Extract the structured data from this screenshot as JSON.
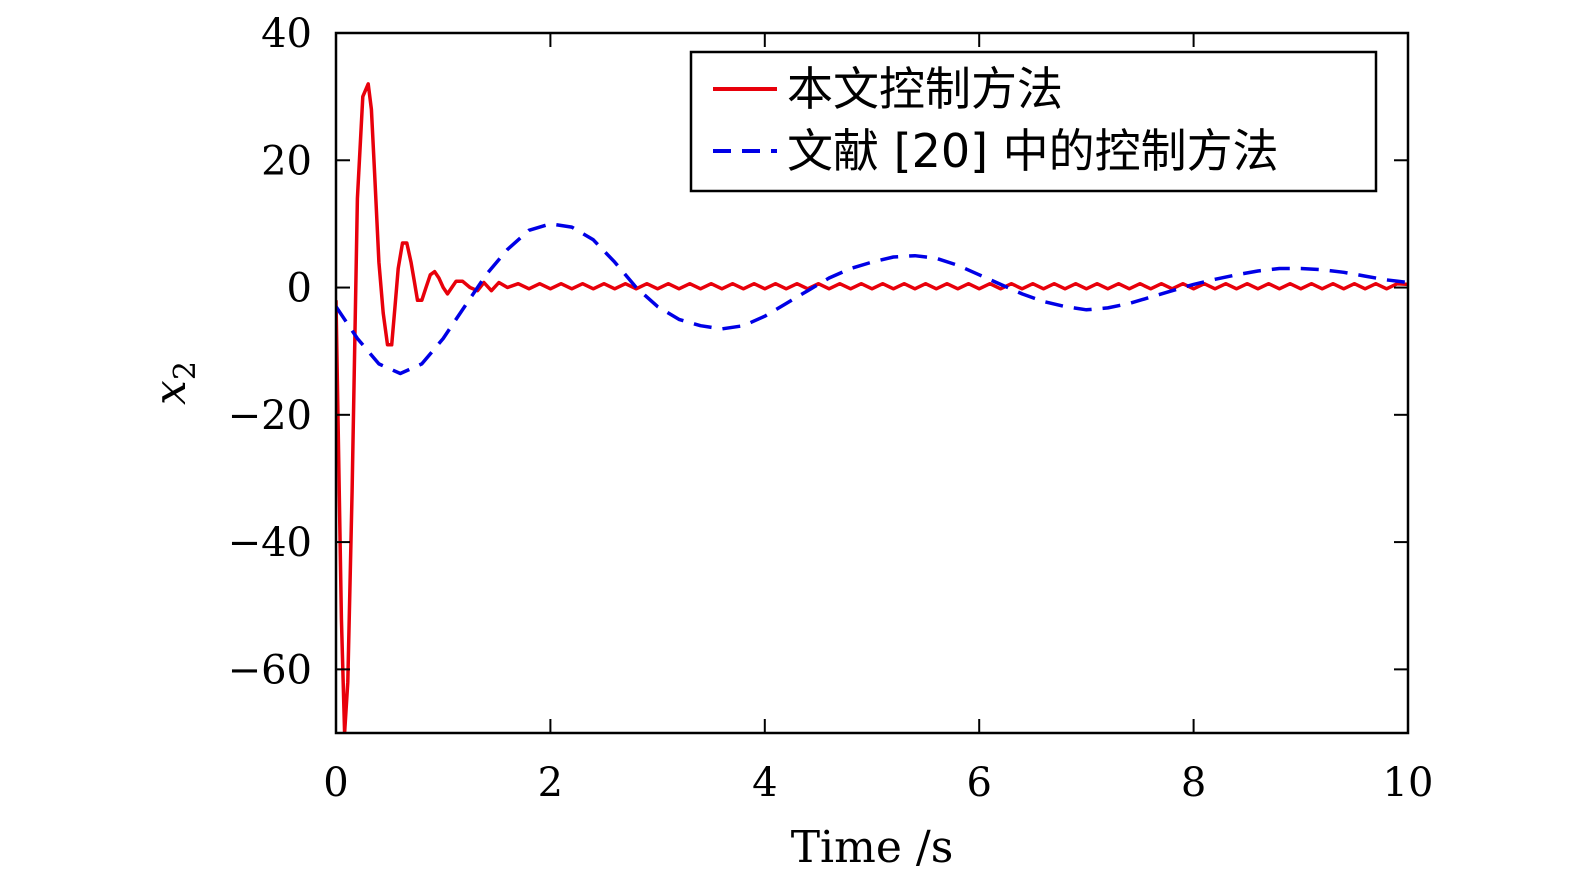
{
  "chart_data": {
    "type": "line",
    "title": "",
    "xlabel": "Time /s",
    "ylabel": "x",
    "ylabel_subscript": "2",
    "xlim": [
      0,
      10
    ],
    "ylim": [
      -70,
      40
    ],
    "xticks": [
      0,
      2,
      4,
      6,
      8,
      10
    ],
    "xtick_labels": [
      "0",
      "2",
      "4",
      "6",
      "8",
      "10"
    ],
    "yticks": [
      40,
      20,
      0,
      -20,
      -40,
      -60
    ],
    "ytick_labels": [
      "40",
      "20",
      "0",
      "−20",
      "−40",
      "−60"
    ],
    "grid": false,
    "legend_position": "top-right",
    "series": [
      {
        "name": "本文控制方法",
        "color": "#e8000b",
        "dash": "solid",
        "x": [
          0,
          0.05,
          0.08,
          0.11,
          0.15,
          0.2,
          0.25,
          0.3,
          0.33,
          0.36,
          0.4,
          0.44,
          0.48,
          0.52,
          0.55,
          0.58,
          0.62,
          0.66,
          0.7,
          0.73,
          0.76,
          0.8,
          0.84,
          0.88,
          0.92,
          0.96,
          1.0,
          1.04,
          1.08,
          1.12,
          1.18,
          1.25,
          1.32,
          1.38,
          1.45,
          1.52,
          1.6,
          1.7,
          1.8,
          1.9,
          2.0,
          2.1,
          2.2,
          2.3,
          2.4,
          2.5,
          2.6,
          2.7,
          2.8,
          2.9,
          3.0,
          3.1,
          3.2,
          3.3,
          3.4,
          3.5,
          3.6,
          3.7,
          3.8,
          3.9,
          4.0,
          4.1,
          4.2,
          4.3,
          4.4,
          4.5,
          4.6,
          4.7,
          4.8,
          4.9,
          5.0,
          5.1,
          5.2,
          5.3,
          5.4,
          5.5,
          5.6,
          5.7,
          5.8,
          5.9,
          6.0,
          6.1,
          6.2,
          6.3,
          6.4,
          6.5,
          6.6,
          6.7,
          6.8,
          6.9,
          7.0,
          7.1,
          7.2,
          7.3,
          7.4,
          7.5,
          7.6,
          7.7,
          7.8,
          7.9,
          8.0,
          8.1,
          8.2,
          8.3,
          8.4,
          8.5,
          8.6,
          8.7,
          8.8,
          8.9,
          9.0,
          9.1,
          9.2,
          9.3,
          9.4,
          9.5,
          9.6,
          9.7,
          9.8,
          9.9,
          10.0
        ],
        "y": [
          -2,
          -52,
          -70,
          -62,
          -32,
          14,
          30,
          32,
          28,
          18,
          4,
          -4,
          -9,
          -9,
          -3,
          3,
          7,
          7,
          4,
          1,
          -2,
          -2,
          0,
          2,
          2.5,
          1.5,
          0,
          -1,
          0,
          1,
          1,
          0,
          -0.5,
          0.8,
          -0.5,
          0.8,
          0,
          0.6,
          -0.2,
          0.6,
          -0.2,
          0.6,
          -0.2,
          0.6,
          -0.2,
          0.6,
          -0.2,
          0.6,
          -0.2,
          0.6,
          -0.2,
          0.6,
          -0.2,
          0.6,
          -0.2,
          0.6,
          -0.2,
          0.6,
          -0.2,
          0.6,
          -0.2,
          0.6,
          -0.2,
          0.6,
          -0.2,
          0.6,
          -0.2,
          0.6,
          -0.2,
          0.6,
          -0.2,
          0.6,
          -0.2,
          0.6,
          -0.2,
          0.6,
          -0.2,
          0.6,
          -0.2,
          0.6,
          -0.2,
          0.6,
          -0.2,
          0.6,
          -0.2,
          0.6,
          -0.2,
          0.6,
          -0.2,
          0.6,
          -0.2,
          0.6,
          -0.2,
          0.6,
          -0.2,
          0.6,
          -0.2,
          0.6,
          -0.2,
          0.6,
          -0.2,
          0.6,
          -0.2,
          0.6,
          -0.2,
          0.6,
          -0.2,
          0.6,
          -0.2,
          0.6,
          -0.2,
          0.6,
          -0.2,
          0.6,
          -0.2,
          0.6,
          -0.2,
          0.6,
          -0.2,
          0.6,
          0.5
        ]
      },
      {
        "name": "文献 [20] 中的控制方法",
        "color": "#0000e6",
        "dash": "dashed",
        "x": [
          0,
          0.2,
          0.4,
          0.6,
          0.8,
          1.0,
          1.2,
          1.4,
          1.6,
          1.8,
          2.0,
          2.2,
          2.4,
          2.6,
          2.8,
          3.0,
          3.2,
          3.4,
          3.6,
          3.8,
          4.0,
          4.2,
          4.4,
          4.6,
          4.8,
          5.0,
          5.2,
          5.4,
          5.6,
          5.8,
          6.0,
          6.2,
          6.4,
          6.6,
          6.8,
          7.0,
          7.2,
          7.4,
          7.6,
          7.8,
          8.0,
          8.2,
          8.4,
          8.6,
          8.8,
          9.0,
          9.2,
          9.4,
          9.6,
          9.8,
          10.0
        ],
        "y": [
          -3,
          -8,
          -12,
          -13.5,
          -12,
          -8,
          -3,
          2,
          6,
          9,
          10,
          9.5,
          7.5,
          4,
          0,
          -3,
          -5,
          -6,
          -6.5,
          -6,
          -4.5,
          -2.5,
          -0.5,
          1.5,
          3,
          4,
          4.8,
          5,
          4.6,
          3.5,
          2,
          0.5,
          -1,
          -2.2,
          -3,
          -3.5,
          -3.2,
          -2.5,
          -1.5,
          -0.5,
          0.5,
          1.3,
          2,
          2.6,
          3,
          3,
          2.8,
          2.4,
          1.8,
          1.2,
          0.8
        ]
      }
    ]
  }
}
